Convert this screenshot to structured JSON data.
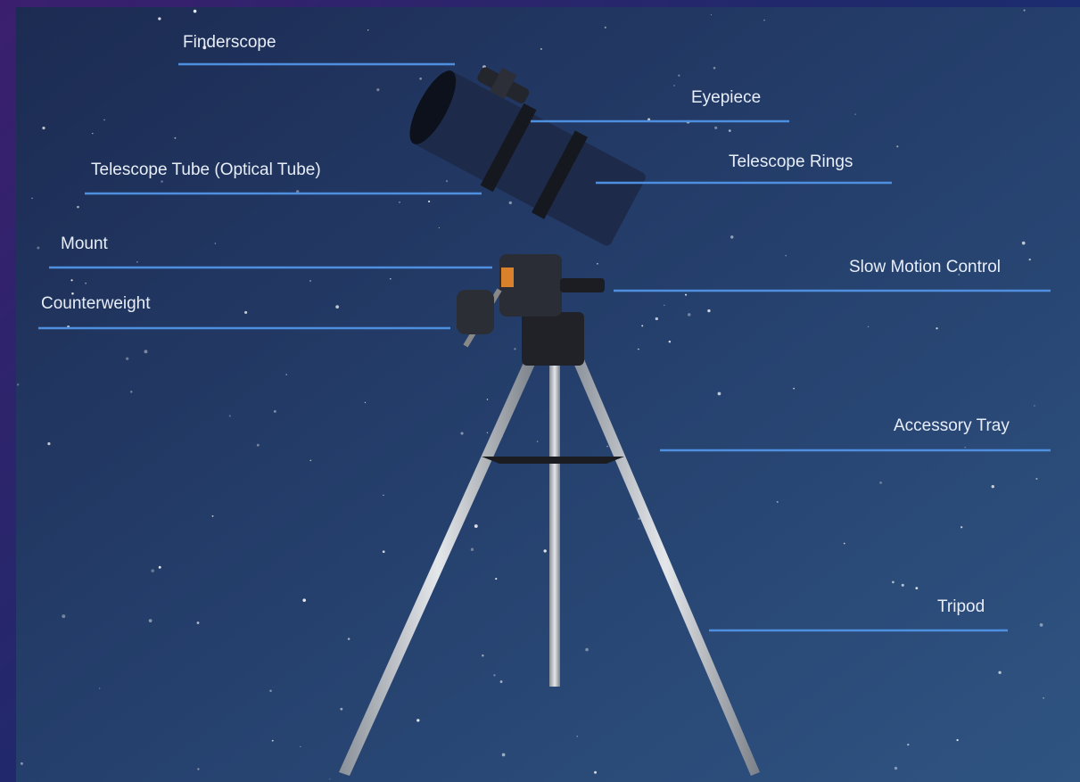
{
  "labels": [
    "Finderscope",
    "Eyepiece",
    "Telescope Tube (Optical Tube)",
    "Telescope Rings",
    "Mount",
    "Slow Motion Control",
    "Counterweight",
    "Accessory Tray",
    "Tripod"
  ]
}
